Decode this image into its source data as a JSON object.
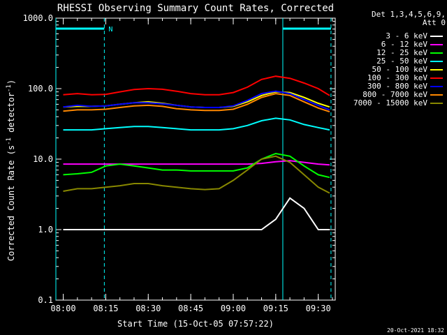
{
  "chart_data": {
    "type": "line",
    "title": "RHESSI Observing Summary Count Rates, Corrected",
    "xlabel": "Start Time (15-Oct-05 07:57:22)",
    "ylabel": "Corrected Count Rate (s^-1 detector^-1)",
    "ylabel_parts": {
      "main": "Corrected Count Rate (s",
      "sup1": "-1",
      "mid": " detector",
      "sup2": "-1",
      "end": ")"
    },
    "y_scale": "log",
    "ylim": [
      0.1,
      1000
    ],
    "xlim_minutes_after_0800": [
      -2.6,
      96.0
    ],
    "y_ticks": [
      {
        "value": 0.1,
        "label": "0.1"
      },
      {
        "value": 1,
        "label": "1.0"
      },
      {
        "value": 10,
        "label": "10.0"
      },
      {
        "value": 100,
        "label": "100.0"
      },
      {
        "value": 1000,
        "label": "1000.0"
      }
    ],
    "x_ticks": [
      {
        "minute": 0,
        "label": "08:00"
      },
      {
        "minute": 15,
        "label": "08:15"
      },
      {
        "minute": 30,
        "label": "08:30"
      },
      {
        "minute": 45,
        "label": "08:45"
      },
      {
        "minute": 60,
        "label": "09:00"
      },
      {
        "minute": 75,
        "label": "09:15"
      },
      {
        "minute": 90,
        "label": "09:30"
      }
    ],
    "legend_header": [
      "Det 1,3,4,5,6,9,",
      "Att 0"
    ],
    "night_marker_label": "N",
    "night_bars": [
      [
        -2.6,
        14.5
      ],
      [
        77.5,
        94.5
      ]
    ],
    "vlines_solid": [
      -2.6,
      77.5
    ],
    "vlines_dashed": [
      14.5,
      94.5
    ],
    "series_x_minutes": [
      0,
      5,
      10,
      15,
      20,
      25,
      30,
      35,
      40,
      45,
      50,
      55,
      60,
      65,
      70,
      75,
      80,
      85,
      90,
      94
    ],
    "series": [
      {
        "name": "3 - 6 keV",
        "color": "#ffffff",
        "values": [
          1.0,
          1.0,
          1.0,
          1.0,
          1.0,
          1.0,
          1.0,
          1.0,
          1.0,
          1.0,
          1.0,
          1.0,
          1.0,
          1.0,
          1.0,
          1.4,
          2.8,
          2.0,
          1.0,
          1.0
        ]
      },
      {
        "name": "6 - 12 keV",
        "color": "#ff00ff",
        "values": [
          8.5,
          8.5,
          8.5,
          8.5,
          8.5,
          8.5,
          8.5,
          8.5,
          8.5,
          8.5,
          8.5,
          8.5,
          8.5,
          8.5,
          8.7,
          9.2,
          9.5,
          9.0,
          8.5,
          8.3
        ]
      },
      {
        "name": "12 - 25 keV",
        "color": "#00ff00",
        "values": [
          6.0,
          6.2,
          6.5,
          8.0,
          8.5,
          8.0,
          7.5,
          7.0,
          7.0,
          6.8,
          6.8,
          6.8,
          6.8,
          7.5,
          10.0,
          12.0,
          11.0,
          8.0,
          6.0,
          5.5
        ]
      },
      {
        "name": "25 - 50 keV",
        "color": "#00ffff",
        "values": [
          26,
          26,
          26,
          27,
          28,
          29,
          29,
          28,
          27,
          26,
          26,
          26,
          27,
          30,
          35,
          38,
          36,
          31,
          28,
          26
        ]
      },
      {
        "name": "50 - 100 keV",
        "color": "#ffff00",
        "values": [
          55,
          56,
          56,
          57,
          60,
          63,
          65,
          62,
          58,
          55,
          54,
          54,
          56,
          65,
          80,
          90,
          88,
          75,
          62,
          55
        ]
      },
      {
        "name": "100 - 300 keV",
        "color": "#ff0000",
        "values": [
          82,
          85,
          82,
          83,
          90,
          97,
          100,
          98,
          92,
          85,
          82,
          82,
          88,
          105,
          135,
          150,
          140,
          120,
          100,
          80
        ]
      },
      {
        "name": "300 - 800 keV",
        "color": "#0000ff",
        "values": [
          55,
          58,
          56,
          57,
          60,
          63,
          63,
          61,
          58,
          55,
          54,
          54,
          57,
          68,
          85,
          92,
          85,
          70,
          58,
          50
        ]
      },
      {
        "name": "800 - 7000 keV",
        "color": "#ff8800",
        "values": [
          48,
          50,
          50,
          51,
          54,
          57,
          58,
          56,
          52,
          50,
          49,
          49,
          51,
          60,
          75,
          85,
          80,
          65,
          53,
          47
        ]
      },
      {
        "name": "7000 - 15000 keV",
        "color": "#888800",
        "values": [
          3.5,
          3.8,
          3.8,
          4.0,
          4.2,
          4.5,
          4.5,
          4.2,
          4.0,
          3.8,
          3.7,
          3.8,
          5.0,
          7.0,
          10.0,
          11.0,
          9.0,
          6.0,
          4.0,
          3.3
        ]
      }
    ]
  },
  "footer": {
    "timestamp": "20-Oct-2021 18:32"
  }
}
